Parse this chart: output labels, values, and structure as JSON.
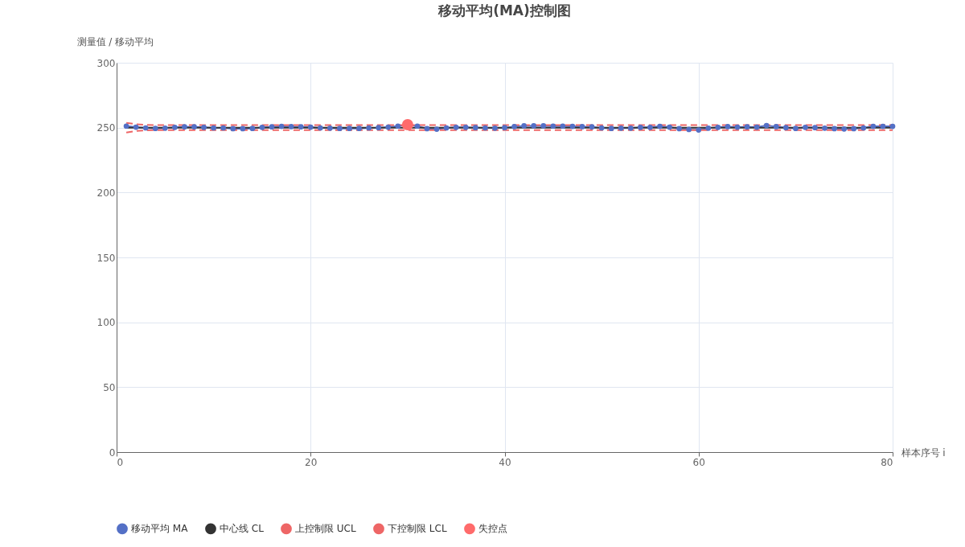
{
  "chart_data": {
    "type": "line",
    "title": "移动平均(MA)控制图",
    "xlabel": "样本序号 i",
    "ylabel": "测量值 / 移动平均",
    "x": [
      1,
      2,
      3,
      4,
      5,
      6,
      7,
      8,
      9,
      10,
      11,
      12,
      13,
      14,
      15,
      16,
      17,
      18,
      19,
      20,
      21,
      22,
      23,
      24,
      25,
      26,
      27,
      28,
      29,
      30,
      31,
      32,
      33,
      34,
      35,
      36,
      37,
      38,
      39,
      40,
      41,
      42,
      43,
      44,
      45,
      46,
      47,
      48,
      49,
      50,
      51,
      52,
      53,
      54,
      55,
      56,
      57,
      58,
      59,
      60,
      61,
      62,
      63,
      64,
      65,
      66,
      67,
      68,
      69,
      70,
      71,
      72,
      73,
      74,
      75,
      76,
      77,
      78,
      79,
      80
    ],
    "series": [
      {
        "name": "移动平均 MA",
        "color": "#5470c6",
        "marker": "circle",
        "line_style": "solid",
        "values": [
          251.2,
          250.4,
          249.8,
          249.4,
          249.6,
          250.2,
          250.6,
          250.6,
          250.2,
          249.8,
          249.8,
          249.2,
          249.2,
          249.4,
          250.2,
          250.6,
          251.0,
          250.8,
          250.6,
          250.4,
          249.8,
          249.6,
          249.4,
          249.4,
          249.4,
          249.8,
          250.0,
          250.4,
          251.2,
          252.3,
          251.2,
          249.2,
          248.8,
          249.8,
          250.2,
          250.2,
          250.0,
          249.8,
          249.6,
          250.0,
          250.8,
          251.4,
          251.4,
          251.4,
          251.2,
          251.2,
          251.0,
          250.8,
          250.6,
          249.8,
          249.4,
          249.6,
          249.6,
          250.2,
          250.2,
          251.0,
          250.4,
          249.2,
          248.6,
          248.2,
          249.6,
          250.2,
          250.8,
          250.4,
          250.6,
          250.4,
          251.6,
          250.8,
          250.0,
          249.4,
          250.2,
          250.0,
          249.6,
          249.2,
          249.0,
          249.2,
          249.8,
          251.0,
          251.0,
          251.0
        ]
      },
      {
        "name": "中心线 CL",
        "color": "#333333",
        "marker": "none",
        "line_style": "solid",
        "values": [
          250,
          250,
          250,
          250,
          250,
          250,
          250,
          250,
          250,
          250,
          250,
          250,
          250,
          250,
          250,
          250,
          250,
          250,
          250,
          250,
          250,
          250,
          250,
          250,
          250,
          250,
          250,
          250,
          250,
          250,
          250,
          250,
          250,
          250,
          250,
          250,
          250,
          250,
          250,
          250,
          250,
          250,
          250,
          250,
          250,
          250,
          250,
          250,
          250,
          250,
          250,
          250,
          250,
          250,
          250,
          250,
          250,
          250,
          250,
          250,
          250,
          250,
          250,
          250,
          250,
          250,
          250,
          250,
          250,
          250,
          250,
          250,
          250,
          250,
          250,
          250,
          250,
          250,
          250,
          250
        ]
      },
      {
        "name": "上控制限 UCL",
        "color": "#ee6666",
        "marker": "none",
        "line_style": "dashed",
        "values": [
          253.7,
          252.6,
          252.1,
          251.9,
          251.9,
          251.9,
          251.9,
          251.9,
          251.9,
          251.9,
          251.9,
          251.9,
          251.9,
          251.9,
          251.9,
          251.9,
          251.9,
          251.9,
          251.9,
          251.9,
          251.9,
          251.9,
          251.9,
          251.9,
          251.9,
          251.9,
          251.9,
          251.9,
          251.9,
          251.9,
          251.9,
          251.9,
          251.9,
          251.9,
          251.9,
          251.9,
          251.9,
          251.9,
          251.9,
          251.9,
          251.9,
          251.9,
          251.9,
          251.9,
          251.9,
          251.9,
          251.9,
          251.9,
          251.9,
          251.9,
          251.9,
          251.9,
          251.9,
          251.9,
          251.9,
          251.9,
          251.9,
          251.9,
          251.9,
          251.9,
          251.9,
          251.9,
          251.9,
          251.9,
          251.9,
          251.9,
          251.9,
          251.9,
          251.9,
          251.9,
          251.9,
          251.9,
          251.9,
          251.9,
          251.9,
          251.9,
          251.9,
          251.9,
          251.9,
          251.9
        ]
      },
      {
        "name": "下控制限 LCL",
        "color": "#ee6666",
        "marker": "none",
        "line_style": "dashed",
        "values": [
          246.3,
          247.4,
          247.9,
          248.1,
          248.1,
          248.1,
          248.1,
          248.1,
          248.1,
          248.1,
          248.1,
          248.1,
          248.1,
          248.1,
          248.1,
          248.1,
          248.1,
          248.1,
          248.1,
          248.1,
          248.1,
          248.1,
          248.1,
          248.1,
          248.1,
          248.1,
          248.1,
          248.1,
          248.1,
          248.1,
          248.1,
          248.1,
          248.1,
          248.1,
          248.1,
          248.1,
          248.1,
          248.1,
          248.1,
          248.1,
          248.1,
          248.1,
          248.1,
          248.1,
          248.1,
          248.1,
          248.1,
          248.1,
          248.1,
          248.1,
          248.1,
          248.1,
          248.1,
          248.1,
          248.1,
          248.1,
          248.1,
          248.1,
          248.1,
          248.1,
          248.1,
          248.1,
          248.1,
          248.1,
          248.1,
          248.1,
          248.1,
          248.1,
          248.1,
          248.1,
          248.1,
          248.1,
          248.1,
          248.1,
          248.1,
          248.1,
          248.1,
          248.1,
          248.1,
          248.1
        ]
      },
      {
        "name": "失控点",
        "type": "scatter",
        "color": "#ff6b6b",
        "marker": "circle",
        "x": [
          30
        ],
        "values": [
          252.3
        ]
      }
    ],
    "xlim": [
      0,
      80
    ],
    "xticks": [
      0,
      20,
      40,
      60,
      80
    ],
    "ylim": [
      0,
      300
    ],
    "yticks": [
      0,
      50,
      100,
      150,
      200,
      250,
      300
    ],
    "grid": true,
    "legend": "bottom"
  }
}
